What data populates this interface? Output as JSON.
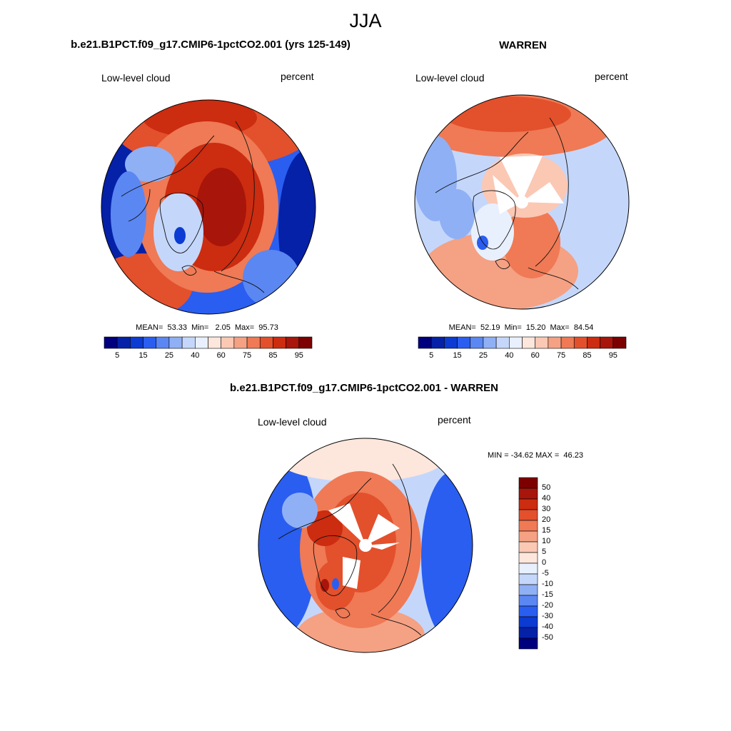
{
  "figure": {
    "title": "JJA"
  },
  "panels": [
    {
      "title": "b.e21.B1PCT.f09_g17.CMIP6-1pctCO2.001 (yrs 125-149)",
      "left_label": "Low-level cloud",
      "right_label": "percent",
      "stats": {
        "mean": "53.33",
        "min": "2.05",
        "max": "95.73"
      },
      "stats_text": "MEAN=  53.33  Min=   2.05  Max=  95.73"
    },
    {
      "title": "WARREN",
      "left_label": "Low-level cloud",
      "right_label": "percent",
      "stats": {
        "mean": "52.19",
        "min": "15.20",
        "max": "84.54"
      },
      "stats_text": "MEAN=  52.19  Min=  15.20  Max=  84.54"
    },
    {
      "title": "b.e21.B1PCT.f09_g17.CMIP6-1pctCO2.001 - WARREN",
      "left_label": "Low-level cloud",
      "right_label": "percent",
      "stats": {
        "min": "-34.62",
        "max": "46.23"
      },
      "stats_text": "MIN = -34.62 MAX =  46.23"
    }
  ],
  "chart_data": [
    {
      "type": "heatmap",
      "projection": "north-polar-stereographic",
      "title": "b.e21.B1PCT.f09_g17.CMIP6-1pctCO2.001 (yrs 125-149)",
      "variable": "Low-level cloud",
      "units": "percent",
      "colorbar": {
        "orientation": "horizontal",
        "tick_labels": [
          "5",
          "15",
          "25",
          "40",
          "60",
          "75",
          "85",
          "95"
        ]
      },
      "mean": 53.33,
      "min": 2.05,
      "max": 95.73
    },
    {
      "type": "heatmap",
      "projection": "north-polar-stereographic",
      "title": "WARREN",
      "variable": "Low-level cloud",
      "units": "percent",
      "colorbar": {
        "orientation": "horizontal",
        "tick_labels": [
          "5",
          "15",
          "25",
          "40",
          "60",
          "75",
          "85",
          "95"
        ]
      },
      "mean": 52.19,
      "min": 15.2,
      "max": 84.54
    },
    {
      "type": "heatmap",
      "projection": "north-polar-stereographic",
      "title": "b.e21.B1PCT.f09_g17.CMIP6-1pctCO2.001 - WARREN",
      "variable": "Low-level cloud",
      "units": "percent",
      "colorbar": {
        "orientation": "vertical",
        "tick_labels": [
          "50",
          "40",
          "30",
          "20",
          "15",
          "10",
          "5",
          "0",
          "-5",
          "-10",
          "-15",
          "-20",
          "-30",
          "-40",
          "-50"
        ]
      },
      "min": -34.62,
      "max": 46.23
    }
  ],
  "palette": [
    "#00007f",
    "#0521a8",
    "#0b3bd2",
    "#2a5ef0",
    "#5b87f2",
    "#8fb0f5",
    "#c4d7fb",
    "#e9f0fd",
    "#fde6dc",
    "#fbc8b4",
    "#f5a184",
    "#ef7a55",
    "#e3502c",
    "#cc2c10",
    "#a8150a",
    "#7d0000"
  ],
  "palette_div": [
    "#7d0000",
    "#a8150a",
    "#cc2c10",
    "#e3502c",
    "#ef7a55",
    "#f5a184",
    "#fbc8b4",
    "#fde6dc",
    "#e9f0fd",
    "#c4d7fb",
    "#8fb0f5",
    "#5b87f2",
    "#2a5ef0",
    "#0b3bd2",
    "#0521a8",
    "#00007f"
  ]
}
